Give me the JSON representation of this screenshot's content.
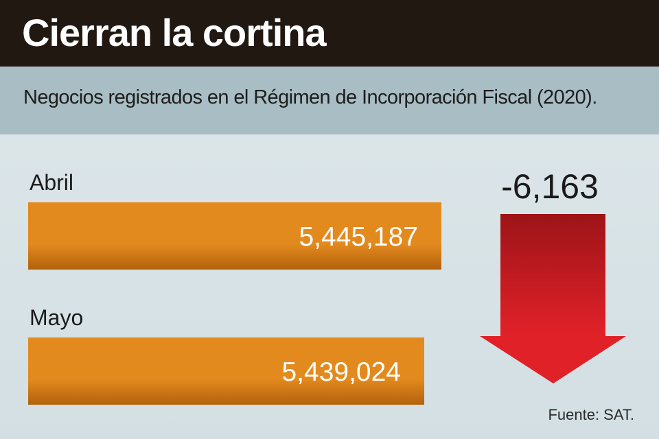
{
  "header": {
    "title": "Cierran la cortina"
  },
  "subtitle": "Negocios registrados en el Régimen  de Incorporación Fiscal (2020).",
  "source": "Fuente: SAT.",
  "colors": {
    "bar": "#e38a1e",
    "bar_dark": "#b3620d",
    "arrow_top": "#9c1418",
    "arrow_bottom": "#e02128",
    "header_bg": "#221812",
    "subtitle_bg": "#a9bdc4"
  },
  "chart_data": {
    "type": "bar",
    "orientation": "horizontal",
    "categories": [
      "Abril",
      "Mayo"
    ],
    "values": [
      5445187,
      5439024
    ],
    "value_labels": [
      "5,445,187",
      "5,439,024"
    ],
    "title": "Cierran la cortina",
    "subtitle": "Negocios registrados en el Régimen  de Incorporación Fiscal (2020).",
    "annotation": {
      "text": "-6,163",
      "icon": "down-arrow-icon"
    },
    "grid": false
  }
}
